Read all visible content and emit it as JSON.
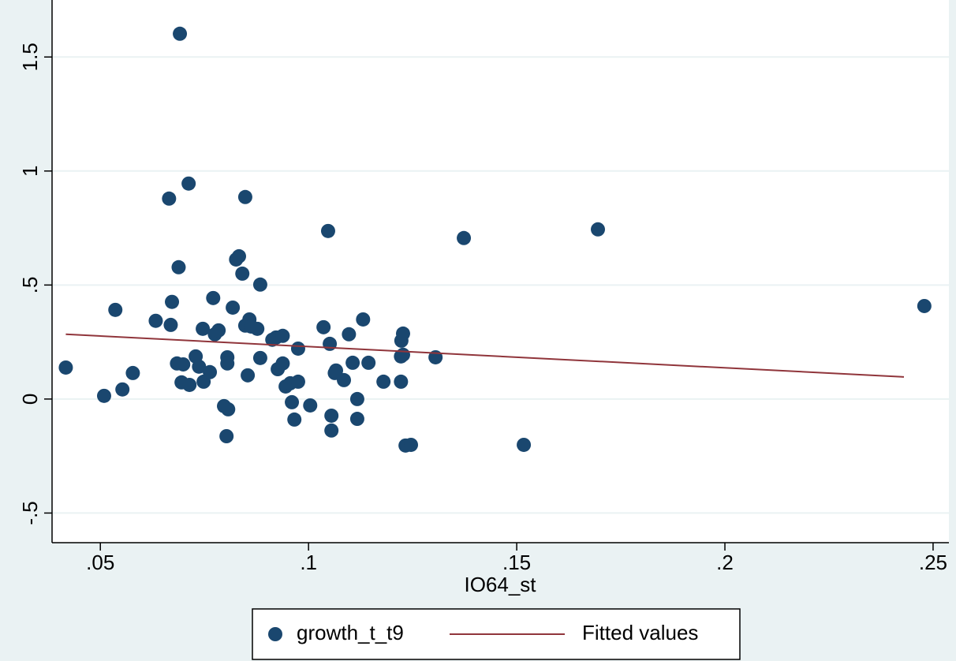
{
  "chart_data": {
    "type": "scatter",
    "xlabel": "IO64_st",
    "xlim": [
      0.0384,
      0.2538
    ],
    "ylim": [
      -0.63,
      1.75
    ],
    "xticks": [
      {
        "value": 0.05,
        "label": ".05"
      },
      {
        "value": 0.1,
        "label": ".1"
      },
      {
        "value": 0.15,
        "label": ".15"
      },
      {
        "value": 0.2,
        "label": ".2"
      },
      {
        "value": 0.25,
        "label": ".25"
      }
    ],
    "yticks": [
      {
        "value": -0.5,
        "label": "-.5"
      },
      0,
      {
        "value": 0.5,
        "label": ".5"
      },
      1,
      1.5
    ],
    "grid": true,
    "legend": "bottom",
    "series": [
      {
        "name": "growth_t_t9",
        "type": "scatter",
        "color": "#1a476f",
        "x": [
          0.0417,
          0.0509,
          0.0536,
          0.0553,
          0.0578,
          0.0633,
          0.0665,
          0.0669,
          0.0672,
          0.0688,
          0.0684,
          0.0691,
          0.0695,
          0.0699,
          0.0712,
          0.0714,
          0.0729,
          0.0737,
          0.0748,
          0.0746,
          0.0763,
          0.0771,
          0.0775,
          0.0784,
          0.0797,
          0.0803,
          0.0807,
          0.0805,
          0.0805,
          0.0818,
          0.0826,
          0.0833,
          0.0841,
          0.0848,
          0.0848,
          0.0854,
          0.0858,
          0.0862,
          0.0877,
          0.0884,
          0.0884,
          0.0913,
          0.0922,
          0.0926,
          0.0938,
          0.0938,
          0.0945,
          0.0956,
          0.096,
          0.0966,
          0.0975,
          0.0975,
          0.1004,
          0.1036,
          0.1047,
          0.1051,
          0.1055,
          0.1055,
          0.1063,
          0.1066,
          0.1085,
          0.1097,
          0.1106,
          0.1117,
          0.1117,
          0.1131,
          0.1144,
          0.118,
          0.1222,
          0.1222,
          0.1223,
          0.1227,
          0.1227,
          0.1233,
          0.1246,
          0.1305,
          0.1373,
          0.1517,
          0.1695,
          0.2479
        ],
        "values": [
          0.138,
          0.014,
          0.391,
          0.042,
          0.114,
          0.343,
          0.879,
          0.325,
          0.426,
          0.578,
          0.156,
          1.602,
          0.073,
          0.152,
          0.945,
          0.062,
          0.187,
          0.142,
          0.076,
          0.308,
          0.118,
          0.443,
          0.284,
          0.301,
          -0.031,
          -0.163,
          -0.045,
          0.183,
          0.156,
          0.401,
          0.612,
          0.626,
          0.55,
          0.886,
          0.322,
          0.104,
          0.349,
          0.318,
          0.308,
          0.502,
          0.18,
          0.26,
          0.27,
          0.131,
          0.277,
          0.156,
          0.055,
          0.069,
          -0.014,
          -0.09,
          0.221,
          0.076,
          -0.028,
          0.315,
          0.737,
          0.242,
          -0.073,
          -0.138,
          0.114,
          0.125,
          0.083,
          0.284,
          0.159,
          0.0,
          -0.087,
          0.349,
          0.159,
          0.076,
          0.187,
          0.076,
          0.256,
          0.287,
          0.194,
          -0.204,
          -0.201,
          0.183,
          0.706,
          -0.201,
          0.744,
          0.408
        ]
      },
      {
        "name": "Fitted values",
        "type": "line",
        "color": "#90353b",
        "x": [
          0.0417,
          0.243
        ],
        "values": [
          0.284,
          0.097
        ]
      }
    ]
  }
}
